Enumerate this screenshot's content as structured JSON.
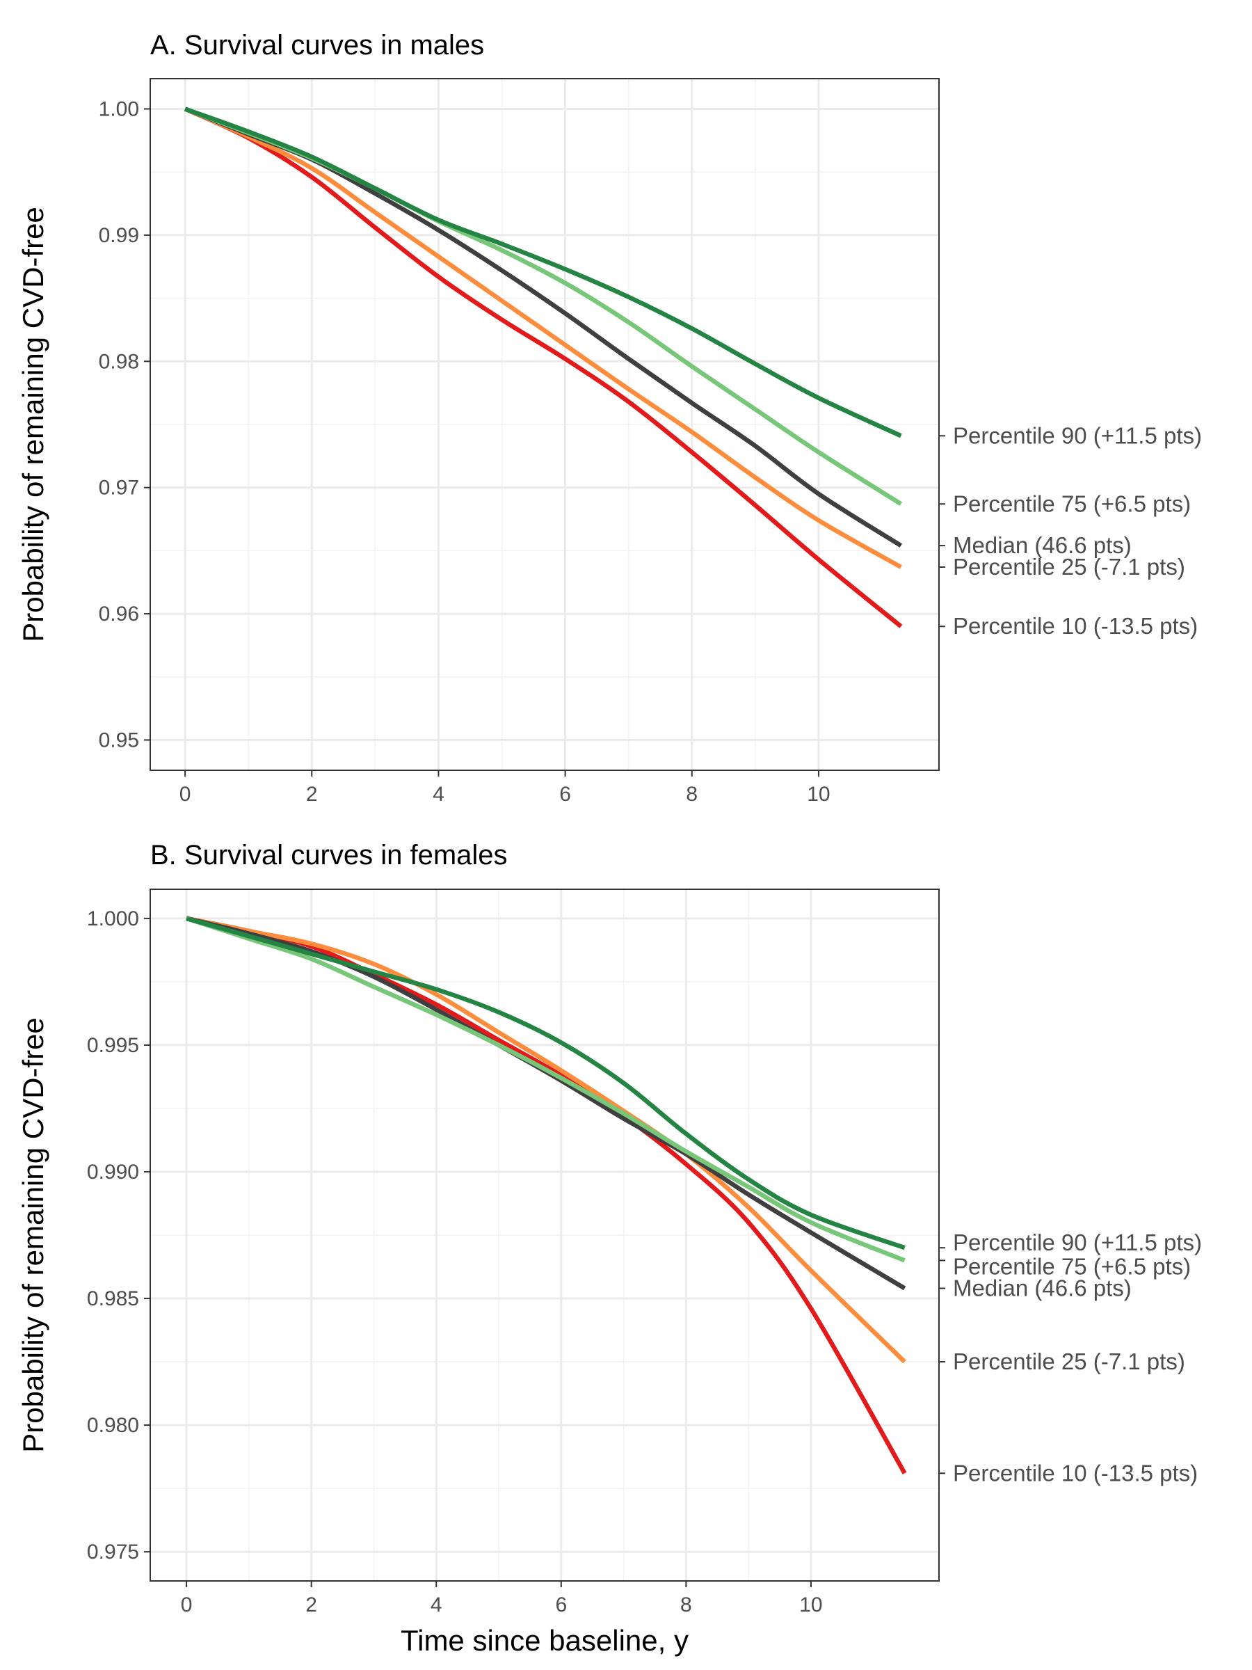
{
  "chart_data": [
    {
      "type": "line",
      "title": "A. Survival curves in males",
      "xlabel": "",
      "ylabel": "Probability of remaining CVD-free",
      "xlim": [
        -0.55,
        11.9
      ],
      "ylim": [
        0.9476,
        1.0024
      ],
      "x_ticks": [
        0,
        2,
        4,
        6,
        8,
        10
      ],
      "y_ticks": [
        0.95,
        0.96,
        0.97,
        0.98,
        0.99,
        1.0
      ],
      "y_tick_labels": [
        "0.95",
        "0.96",
        "0.97",
        "0.98",
        "0.99",
        "1.00"
      ],
      "grid": true,
      "legend": "direct labels at line ends (right)",
      "x": [
        0,
        1,
        2,
        3,
        4,
        5,
        6,
        7,
        8,
        9,
        10,
        11.3
      ],
      "series": [
        {
          "name": "Percentile 90 (+11.5 pts)",
          "color": "#238443",
          "values": [
            1.0,
            0.9982,
            0.9962,
            0.9937,
            0.9912,
            0.9893,
            0.9873,
            0.9851,
            0.9826,
            0.9798,
            0.9771,
            0.9741
          ]
        },
        {
          "name": "Percentile 75 (+6.5 pts)",
          "color": "#78c679",
          "values": [
            1.0,
            0.9981,
            0.9961,
            0.9937,
            0.9911,
            0.9888,
            0.9862,
            0.9831,
            0.9796,
            0.9762,
            0.9728,
            0.9687
          ]
        },
        {
          "name": "Median (46.6 pts)",
          "color": "#3f3f3f",
          "values": [
            1.0,
            0.998,
            0.996,
            0.9933,
            0.9904,
            0.9872,
            0.9838,
            0.9802,
            0.9767,
            0.9733,
            0.9695,
            0.9654
          ]
        },
        {
          "name": "Percentile 25 (-7.1 pts)",
          "color": "#fd8d3c",
          "values": [
            1.0,
            0.9978,
            0.9953,
            0.9918,
            0.9883,
            0.9848,
            0.9813,
            0.9778,
            0.9744,
            0.9708,
            0.9674,
            0.9637
          ]
        },
        {
          "name": "Percentile 10 (-13.5 pts)",
          "color": "#e31a1c",
          "values": [
            1.0,
            0.9977,
            0.9946,
            0.9906,
            0.9867,
            0.9833,
            0.9802,
            0.9768,
            0.9728,
            0.9686,
            0.9643,
            0.959
          ]
        }
      ]
    },
    {
      "type": "line",
      "title": "B. Survival curves in females",
      "xlabel": "Time since baseline, y",
      "ylabel": "Probability of remaining CVD-free",
      "xlim": [
        -0.58,
        12.05
      ],
      "ylim": [
        0.97385,
        1.00115
      ],
      "x_ticks": [
        0,
        2,
        4,
        6,
        8,
        10
      ],
      "y_ticks": [
        0.975,
        0.98,
        0.985,
        0.99,
        0.995,
        1.0
      ],
      "y_tick_labels": [
        "0.975",
        "0.980",
        "0.985",
        "0.990",
        "0.995",
        "1.000"
      ],
      "grid": true,
      "legend": "direct labels at line ends (right)",
      "x": [
        0,
        1,
        2,
        3,
        4,
        5,
        6,
        7,
        8,
        9,
        10,
        11.5
      ],
      "series": [
        {
          "name": "Percentile 90 (+11.5 pts)",
          "color": "#238443",
          "values": [
            1.0,
            0.9993,
            0.9986,
            0.9979,
            0.9972,
            0.9963,
            0.9951,
            0.9935,
            0.9915,
            0.9897,
            0.9883,
            0.987
          ]
        },
        {
          "name": "Percentile 75 (+6.5 pts)",
          "color": "#78c679",
          "values": [
            1.0,
            0.9992,
            0.9984,
            0.9973,
            0.9962,
            0.995,
            0.9937,
            0.9923,
            0.9908,
            0.9894,
            0.988,
            0.9865
          ]
        },
        {
          "name": "Median (46.6 pts)",
          "color": "#3f3f3f",
          "values": [
            1.0,
            0.9994,
            0.9987,
            0.9977,
            0.9964,
            0.995,
            0.9936,
            0.9921,
            0.9907,
            0.9891,
            0.9876,
            0.9854
          ]
        },
        {
          "name": "Percentile 25 (-7.1 pts)",
          "color": "#fd8d3c",
          "values": [
            1.0,
            0.9995,
            0.999,
            0.9982,
            0.997,
            0.9955,
            0.994,
            0.9924,
            0.9907,
            0.9886,
            0.9861,
            0.9825
          ]
        },
        {
          "name": "Percentile 10 (-13.5 pts)",
          "color": "#e31a1c",
          "values": [
            1.0,
            0.9995,
            0.9989,
            0.9978,
            0.9966,
            0.9952,
            0.9938,
            0.9922,
            0.9903,
            0.988,
            0.9846,
            0.9781
          ]
        }
      ]
    }
  ]
}
